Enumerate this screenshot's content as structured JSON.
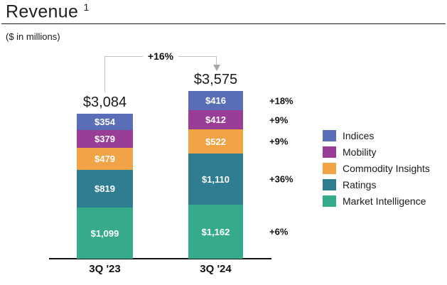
{
  "header": {
    "title": "Revenue",
    "superscript": "1",
    "subtitle": "($ in millions)"
  },
  "chart_data": {
    "type": "bar",
    "stacked": true,
    "grid": false,
    "legend_position": "right",
    "xlabel": "",
    "ylabel": "",
    "categories": [
      "3Q '23",
      "3Q '24"
    ],
    "totals": [
      {
        "label": "$3,084",
        "value": 3084
      },
      {
        "label": "$3,575",
        "value": 3575
      }
    ],
    "total_change": "+16%",
    "series": [
      {
        "name": "Indices",
        "color": "#5a6eb7",
        "values": [
          354,
          416
        ],
        "labels": [
          "$354",
          "$416"
        ],
        "change": "+18%"
      },
      {
        "name": "Mobility",
        "color": "#9a3d96",
        "values": [
          379,
          412
        ],
        "labels": [
          "$379",
          "$412"
        ],
        "change": "+9%"
      },
      {
        "name": "Commodity Insights",
        "color": "#f0a445",
        "values": [
          479,
          522
        ],
        "labels": [
          "$479",
          "$522"
        ],
        "change": "+9%"
      },
      {
        "name": "Ratings",
        "color": "#2e7d91",
        "values": [
          819,
          1110
        ],
        "labels": [
          "$819",
          "$1,110"
        ],
        "change": "+36%"
      },
      {
        "name": "Market Intelligence",
        "color": "#36ab8c",
        "values": [
          1099,
          1162
        ],
        "labels": [
          "$1,099",
          "$1,162"
        ],
        "change": "+6%"
      }
    ],
    "legend": [
      "Indices",
      "Mobility",
      "Commodity Insights",
      "Ratings",
      "Market Intelligence"
    ]
  }
}
